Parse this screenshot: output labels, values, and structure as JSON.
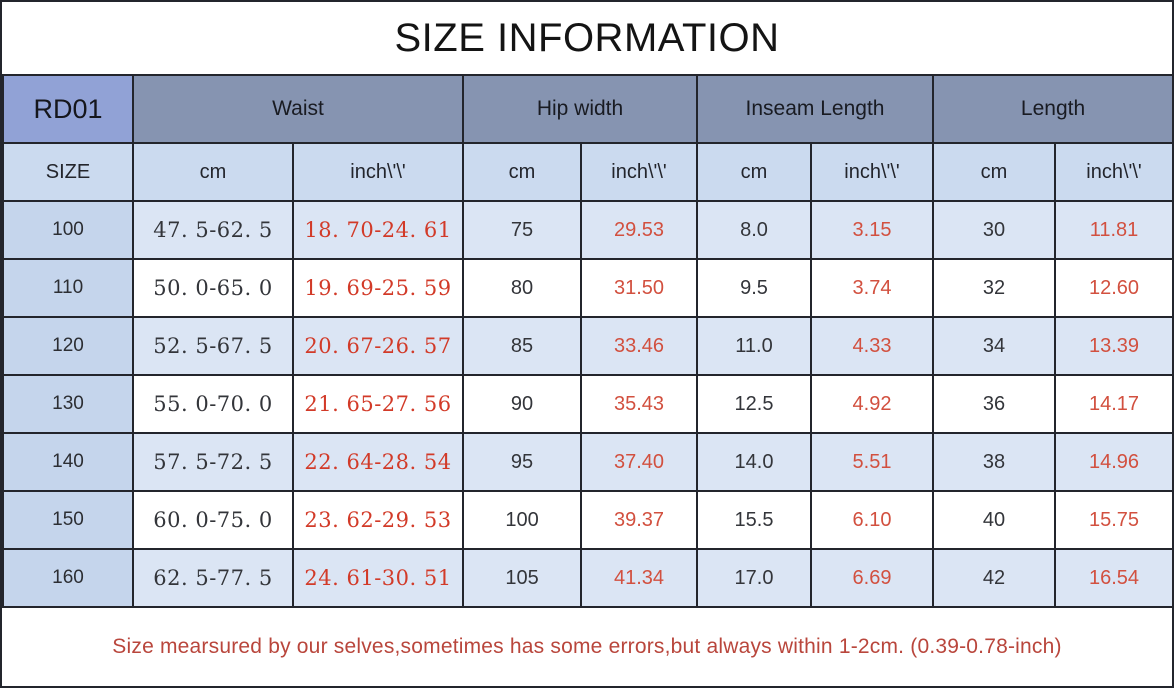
{
  "page": {
    "title": "SIZE INFORMATION",
    "note": "Size mearsured by our selves,sometimes has some errors,but always within 1-2cm. (0.39-0.78-inch)"
  },
  "colors": {
    "border": "#23252c",
    "model_header_bg": "#91a2d6",
    "group_header_bg": "#8694b1",
    "subheader_bg": "#cbdaef",
    "size_col_bg": "#c5d5ec",
    "zebra_row_bg": "#dbe5f4",
    "inch_red_serif": "#d23a28",
    "inch_red_sans": "#d2503f",
    "note_red": "#b9463c"
  },
  "table": {
    "model_code": "RD01",
    "size_label": "SIZE",
    "unit_cm": "cm",
    "unit_inch": "inch\\'\\'",
    "groups": [
      {
        "label": "Waist"
      },
      {
        "label": "Hip width"
      },
      {
        "label": "Inseam Length"
      },
      {
        "label": "Length"
      }
    ],
    "column_keys": [
      "size",
      "waist-cm",
      "waist-inch",
      "hip-cm",
      "hip-inch",
      "inseam-cm",
      "inseam-inch",
      "length-cm",
      "length-inch"
    ],
    "rows": [
      {
        "cells": [
          "100",
          "47. 5-62. 5",
          "18. 70-24. 61",
          "75",
          "29.53",
          "8.0",
          "3.15",
          "30",
          "11.81"
        ]
      },
      {
        "cells": [
          "110",
          "50. 0-65. 0",
          "19. 69-25. 59",
          "80",
          "31.50",
          "9.5",
          "3.74",
          "32",
          "12.60"
        ]
      },
      {
        "cells": [
          "120",
          "52. 5-67. 5",
          "20. 67-26. 57",
          "85",
          "33.46",
          "11.0",
          "4.33",
          "34",
          "13.39"
        ]
      },
      {
        "cells": [
          "130",
          "55. 0-70. 0",
          "21. 65-27. 56",
          "90",
          "35.43",
          "12.5",
          "4.92",
          "36",
          "14.17"
        ]
      },
      {
        "cells": [
          "140",
          "57. 5-72. 5",
          "22. 64-28. 54",
          "95",
          "37.40",
          "14.0",
          "5.51",
          "38",
          "14.96"
        ]
      },
      {
        "cells": [
          "150",
          "60. 0-75. 0",
          "23. 62-29. 53",
          "100",
          "39.37",
          "15.5",
          "6.10",
          "40",
          "15.75"
        ]
      },
      {
        "cells": [
          "160",
          "62. 5-77. 5",
          "24. 61-30. 51",
          "105",
          "41.34",
          "17.0",
          "6.69",
          "42",
          "16.54"
        ]
      }
    ]
  }
}
